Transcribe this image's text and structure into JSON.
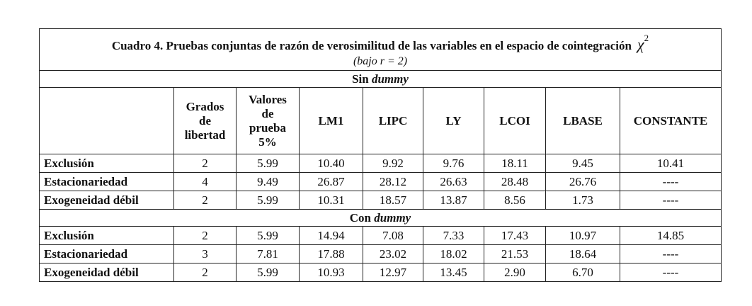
{
  "table": {
    "title": {
      "text": "Cuadro 4. Pruebas conjuntas de razón de verosimilitud de las variables en el espacio de cointegración",
      "symbol": "χ",
      "superscript": "2",
      "subtitle": "(bajo r = 2)"
    },
    "columns": [
      [
        "Grados",
        "de",
        "libertad"
      ],
      [
        "Valores",
        "de",
        "prueba",
        "5%"
      ],
      [
        "LM1"
      ],
      [
        "LIPC"
      ],
      [
        "LY"
      ],
      [
        "LCOI"
      ],
      [
        "LBASE"
      ],
      [
        "CONSTANTE"
      ]
    ],
    "sections": [
      {
        "label": "Sin",
        "emphasis": "dummy",
        "rows": [
          [
            "Exclusión",
            "2",
            "5.99",
            "10.40",
            "9.92",
            "9.76",
            "18.11",
            "9.45",
            "10.41"
          ],
          [
            "Estacionariedad",
            "4",
            "9.49",
            "26.87",
            "28.12",
            "26.63",
            "28.48",
            "26.76",
            "----"
          ],
          [
            "Exogeneidad débil",
            "2",
            "5.99",
            "10.31",
            "18.57",
            "13.87",
            "8.56",
            "1.73",
            "----"
          ]
        ]
      },
      {
        "label": "Con",
        "emphasis": "dummy",
        "rows": [
          [
            "Exclusión",
            "2",
            "5.99",
            "14.94",
            "7.08",
            "7.33",
            "17.43",
            "10.97",
            "14.85"
          ],
          [
            "Estacionariedad",
            "3",
            "7.81",
            "17.88",
            "23.02",
            "18.02",
            "21.53",
            "18.64",
            "----"
          ],
          [
            "Exogeneidad débil",
            "2",
            "5.99",
            "10.93",
            "12.97",
            "13.45",
            "2.90",
            "6.70",
            "----"
          ]
        ]
      }
    ]
  }
}
